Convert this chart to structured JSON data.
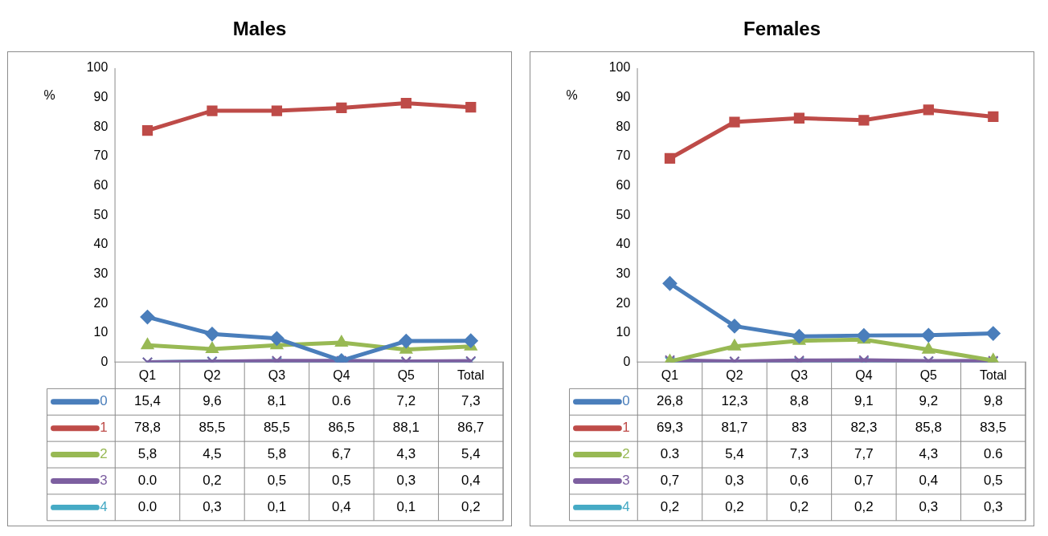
{
  "chart_data": [
    {
      "type": "line",
      "title": "Males",
      "ylabel": "%",
      "categories": [
        "Q1",
        "Q2",
        "Q3",
        "Q4",
        "Q5",
        "Total"
      ],
      "ylim": [
        0,
        100
      ],
      "yticks": [
        0,
        10,
        20,
        30,
        40,
        50,
        60,
        70,
        80,
        90,
        100
      ],
      "grid": false,
      "legend": "bottom",
      "series": [
        {
          "name": "0",
          "color": "#4a7ebb",
          "marker": "diamond",
          "values": [
            15.4,
            9.6,
            8.1,
            0.6,
            7.2,
            7.3
          ],
          "value_labels": [
            "15,4",
            "9,6",
            "8,1",
            "0.6",
            "7,2",
            "7,3"
          ]
        },
        {
          "name": "1",
          "color": "#be4b48",
          "marker": "square",
          "values": [
            78.8,
            85.5,
            85.5,
            86.5,
            88.1,
            86.7
          ],
          "value_labels": [
            "78,8",
            "85,5",
            "85,5",
            "86,5",
            "88,1",
            "86,7"
          ]
        },
        {
          "name": "2",
          "color": "#98b954",
          "marker": "triangle",
          "values": [
            5.8,
            4.5,
            5.8,
            6.7,
            4.3,
            5.4
          ],
          "value_labels": [
            "5,8",
            "4,5",
            "5,8",
            "6,7",
            "4,3",
            "5,4"
          ]
        },
        {
          "name": "3",
          "color": "#7d5fa0",
          "marker": "cross",
          "values": [
            0.0,
            0.2,
            0.5,
            0.5,
            0.3,
            0.4
          ],
          "value_labels": [
            "0.0",
            "0,2",
            "0,5",
            "0,5",
            "0,3",
            "0,4"
          ]
        },
        {
          "name": "4",
          "color": "#46aac5",
          "marker": "cross",
          "values": [
            0.0,
            0.3,
            0.1,
            0.4,
            0.1,
            0.2
          ],
          "value_labels": [
            "0.0",
            "0,3",
            "0,1",
            "0,4",
            "0,1",
            "0,2"
          ]
        }
      ]
    },
    {
      "type": "line",
      "title": "Females",
      "ylabel": "%",
      "categories": [
        "Q1",
        "Q2",
        "Q3",
        "Q4",
        "Q5",
        "Total"
      ],
      "ylim": [
        0,
        100
      ],
      "yticks": [
        0,
        10,
        20,
        30,
        40,
        50,
        60,
        70,
        80,
        90,
        100
      ],
      "grid": false,
      "legend": "bottom",
      "series": [
        {
          "name": "0",
          "color": "#4a7ebb",
          "marker": "diamond",
          "values": [
            26.8,
            12.3,
            8.8,
            9.1,
            9.2,
            9.8
          ],
          "value_labels": [
            "26,8",
            "12,3",
            "8,8",
            "9,1",
            "9,2",
            "9,8"
          ]
        },
        {
          "name": "1",
          "color": "#be4b48",
          "marker": "square",
          "values": [
            69.3,
            81.7,
            83,
            82.3,
            85.8,
            83.5
          ],
          "value_labels": [
            "69,3",
            "81,7",
            "83",
            "82,3",
            "85,8",
            "83,5"
          ]
        },
        {
          "name": "2",
          "color": "#98b954",
          "marker": "triangle",
          "values": [
            0.3,
            5.4,
            7.3,
            7.7,
            4.3,
            0.6
          ],
          "value_labels": [
            "0.3",
            "5,4",
            "7,3",
            "7,7",
            "4,3",
            "0.6"
          ]
        },
        {
          "name": "3",
          "color": "#7d5fa0",
          "marker": "cross",
          "values": [
            0.7,
            0.3,
            0.6,
            0.7,
            0.4,
            0.5
          ],
          "value_labels": [
            "0,7",
            "0,3",
            "0,6",
            "0,7",
            "0,4",
            "0,5"
          ]
        },
        {
          "name": "4",
          "color": "#46aac5",
          "marker": "cross",
          "values": [
            0.2,
            0.2,
            0.2,
            0.2,
            0.3,
            0.3
          ],
          "value_labels": [
            "0,2",
            "0,2",
            "0,2",
            "0,2",
            "0,3",
            "0,3"
          ]
        }
      ]
    }
  ]
}
